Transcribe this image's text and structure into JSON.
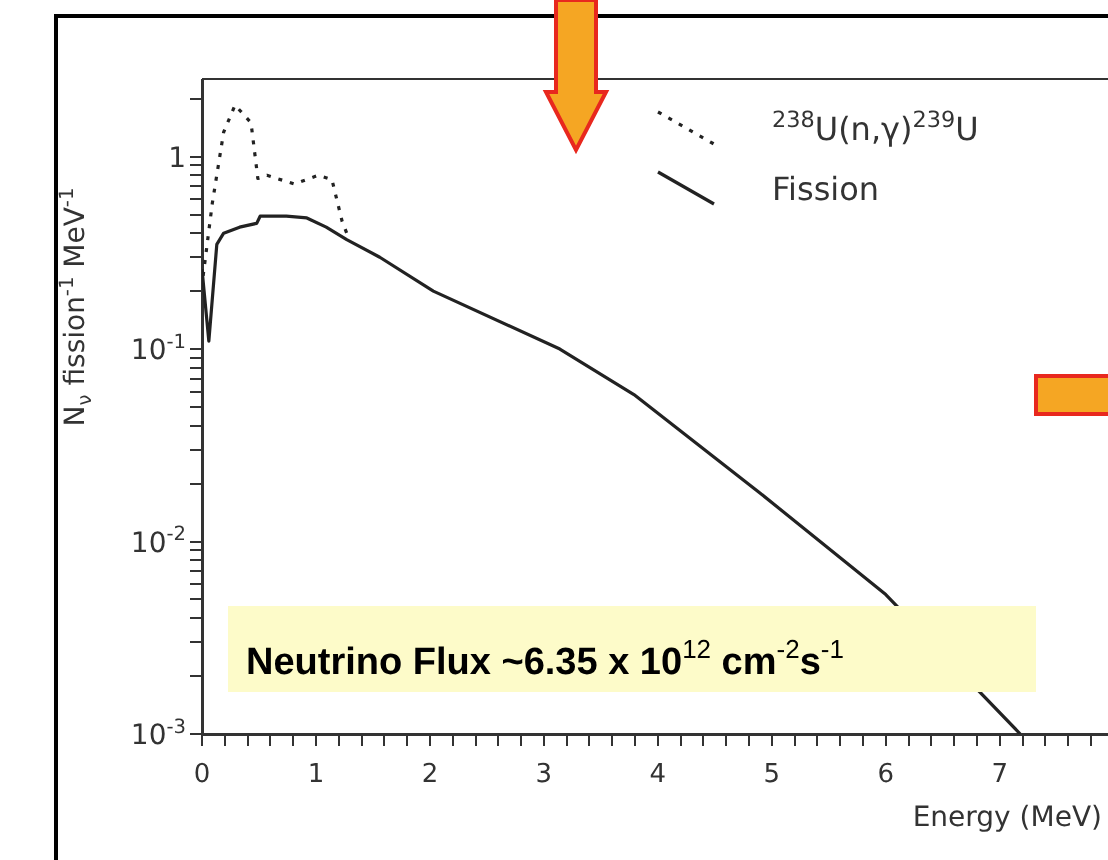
{
  "chart_data": {
    "type": "line",
    "xlabel": "Energy (MeV)",
    "ylabel": "N$_{ν}$ fission$^{-1}$ MeV$^{-1}$",
    "log": "y",
    "grid": false,
    "legend": "top right",
    "marker": "none",
    "xlim": [
      0,
      7.95
    ],
    "ylim": [
      0.001,
      2.5
    ],
    "xticks": [
      0,
      {
        "value": 0.2,
        "label": null
      },
      {
        "value": 0.4,
        "label": null
      },
      {
        "value": 0.6,
        "label": null
      },
      {
        "value": 0.8,
        "label": null
      },
      1,
      {
        "value": 1.2,
        "label": null
      },
      {
        "value": 1.4,
        "label": null
      },
      {
        "value": 1.6,
        "label": null
      },
      {
        "value": 1.8,
        "label": null
      },
      2,
      {
        "value": 2.2,
        "label": null
      },
      {
        "value": 2.4,
        "label": null
      },
      {
        "value": 2.6,
        "label": null
      },
      {
        "value": 2.8,
        "label": null
      },
      3,
      {
        "value": 3.2,
        "label": null
      },
      {
        "value": 3.4,
        "label": null
      },
      {
        "value": 3.6,
        "label": null
      },
      {
        "value": 3.8,
        "label": null
      },
      4,
      {
        "value": 4.2,
        "label": null
      },
      {
        "value": 4.4,
        "label": null
      },
      {
        "value": 4.6,
        "label": null
      },
      {
        "value": 4.8,
        "label": null
      },
      5,
      {
        "value": 5.2,
        "label": null
      },
      {
        "value": 5.4,
        "label": null
      },
      {
        "value": 5.6,
        "label": null
      },
      {
        "value": 5.8,
        "label": null
      },
      6,
      {
        "value": 6.2,
        "label": null
      },
      {
        "value": 6.4,
        "label": null
      },
      {
        "value": 6.6,
        "label": null
      },
      {
        "value": 6.8,
        "label": null
      },
      7,
      {
        "value": 7.2,
        "label": null
      },
      {
        "value": 7.4,
        "label": null
      },
      {
        "value": 7.6,
        "label": null
      },
      {
        "value": 7.8,
        "label": null
      }
    ],
    "yticks": [
      {
        "value": 0.001,
        "label": "10$^{-3}$"
      },
      {
        "value": 0.002,
        "label": null
      },
      {
        "value": 0.003,
        "label": null
      },
      {
        "value": 0.004,
        "label": null
      },
      {
        "value": 0.005,
        "label": null
      },
      {
        "value": 0.006,
        "label": null
      },
      {
        "value": 0.007,
        "label": null
      },
      {
        "value": 0.008,
        "label": null
      },
      {
        "value": 0.009,
        "label": null
      },
      {
        "value": 0.01,
        "label": "10$^{-2}$"
      },
      {
        "value": 0.02,
        "label": null
      },
      {
        "value": 0.03,
        "label": null
      },
      {
        "value": 0.04,
        "label": null
      },
      {
        "value": 0.05,
        "label": null
      },
      {
        "value": 0.06,
        "label": null
      },
      {
        "value": 0.07,
        "label": null
      },
      {
        "value": 0.08,
        "label": null
      },
      {
        "value": 0.09,
        "label": null
      },
      {
        "value": 0.1,
        "label": "10$^{-1}$"
      },
      {
        "value": 0.2,
        "label": null
      },
      {
        "value": 0.3,
        "label": null
      },
      {
        "value": 0.4,
        "label": null
      },
      {
        "value": 0.5,
        "label": null
      },
      {
        "value": 0.6,
        "label": null
      },
      {
        "value": 0.7,
        "label": null
      },
      {
        "value": 0.8,
        "label": null
      },
      {
        "value": 0.9,
        "label": null
      },
      1,
      {
        "value": 2,
        "label": null
      }
    ],
    "series": [
      {
        "name": "$^{238}$U(n,γ)$^{239}$U",
        "color": "#222222",
        "line_style": "dotted",
        "x": [
          0.01,
          0.09,
          0.19,
          0.29,
          0.43,
          0.49,
          0.57,
          0.81,
          1.02,
          1.14,
          1.23,
          1.27
        ],
        "values": [
          0.24,
          0.57,
          1.34,
          1.85,
          1.5,
          0.77,
          0.8,
          0.72,
          0.8,
          0.76,
          0.46,
          0.4
        ]
      },
      {
        "name": "Fission",
        "color": "#222222",
        "line_style": "solid",
        "x": [
          0,
          0.06,
          0.13,
          0.19,
          0.33,
          0.48,
          0.51,
          0.74,
          0.92,
          1.09,
          1.27,
          1.56,
          2.03,
          3.14,
          3.79,
          4.89,
          6.0,
          7.18
        ],
        "values": [
          0.26,
          0.11,
          0.35,
          0.4,
          0.43,
          0.45,
          0.49,
          0.49,
          0.48,
          0.43,
          0.37,
          0.3,
          0.2,
          0.1,
          0.058,
          0.018,
          0.0053,
          0.001
        ]
      }
    ],
    "annotations": [
      "Neutrino Flux ~6.35 x 10$^{12}$ cm$^{-2}$s$^{-1}$"
    ]
  }
}
